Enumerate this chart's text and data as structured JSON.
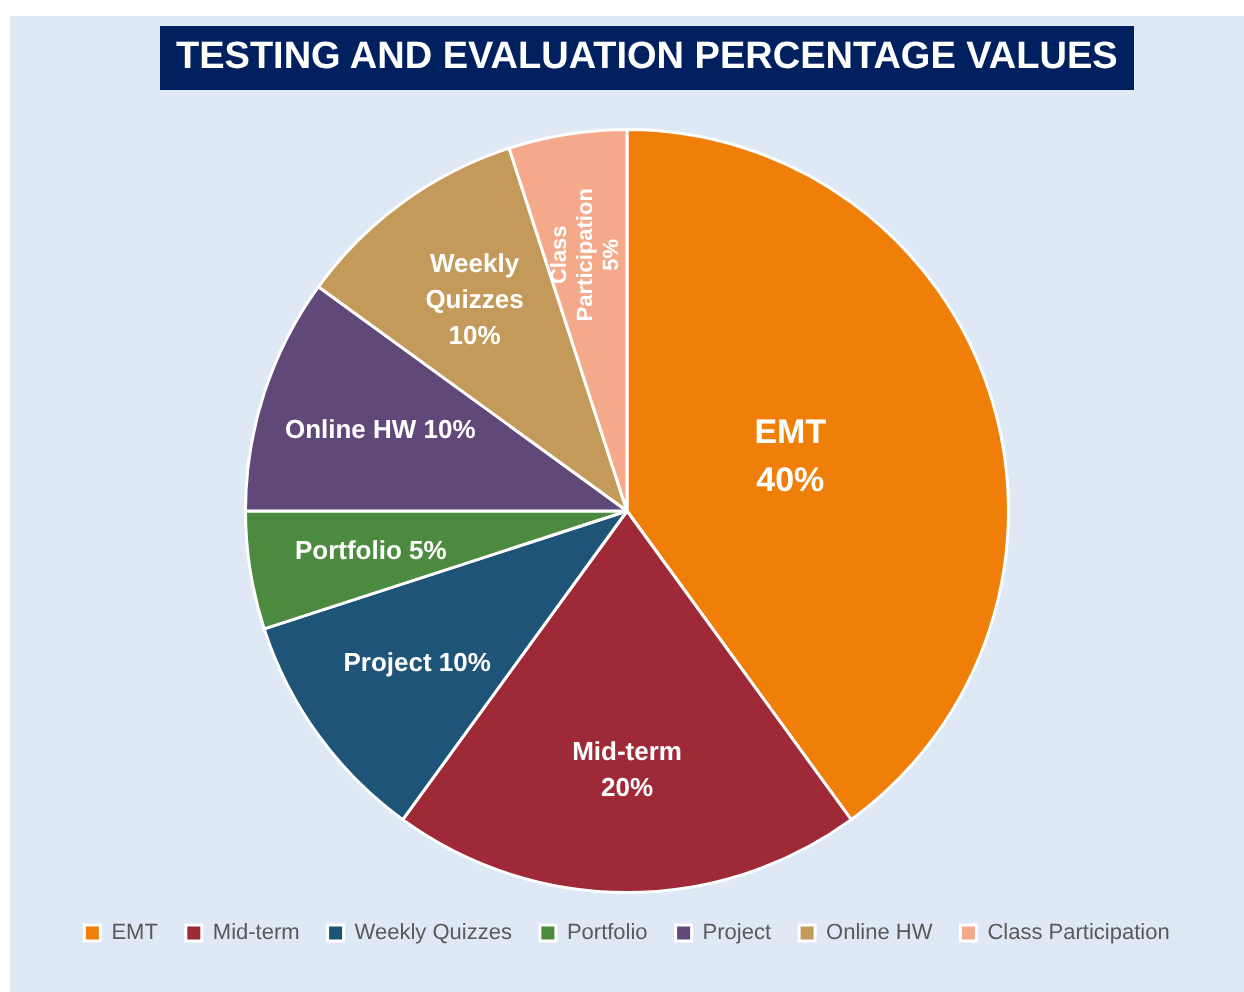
{
  "chart_data": {
    "type": "pie",
    "title": "TESTING AND EVALUATION PERCENTAGE VALUES",
    "categories": [
      "EMT",
      "Mid-term",
      "Weekly Quizzes",
      "Portfolio",
      "Project",
      "Online HW",
      "Class Participation"
    ],
    "values": [
      40,
      20,
      10,
      5,
      10,
      10,
      5
    ],
    "colors": [
      "#f07f09",
      "#9e2a38",
      "#1f5479",
      "#4b8a3f",
      "#604878",
      "#c49a5a",
      "#f4a98a"
    ],
    "value_labels": [
      "EMT\n40%",
      "Mid-term\n20%",
      "Project 10%",
      "Portfolio 5%",
      "Online HW 10%",
      "Weekly\nQuizzes\n10%",
      "Class\nParticipation\n5%"
    ],
    "legend": "bottom"
  }
}
